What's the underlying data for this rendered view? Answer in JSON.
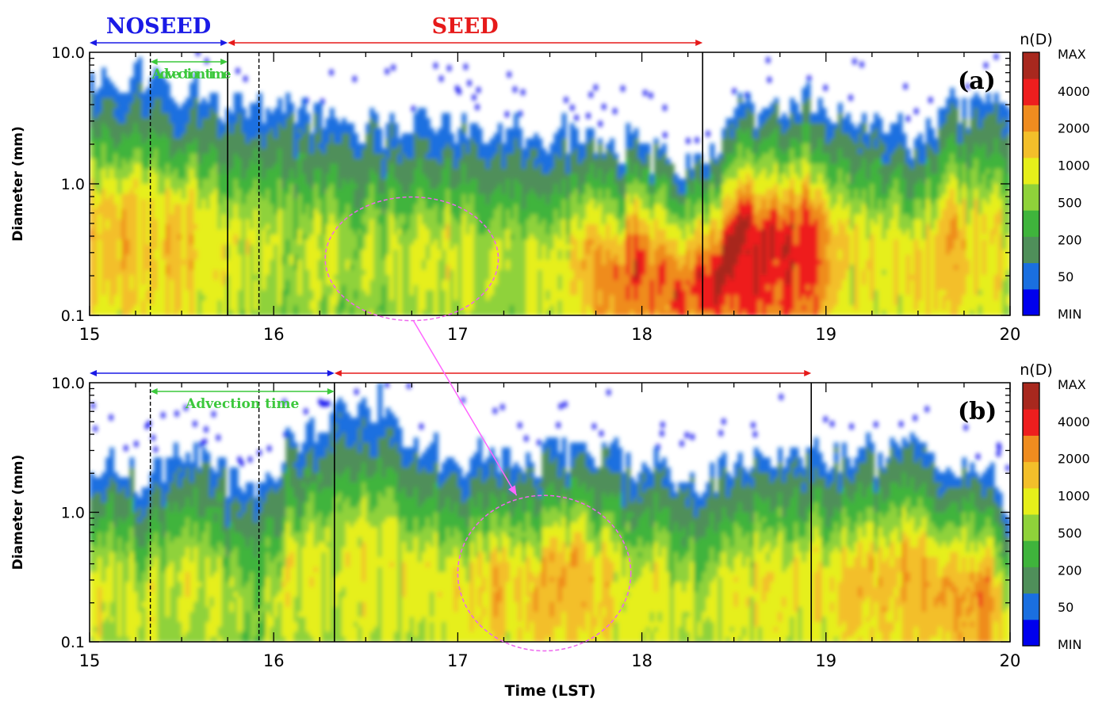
{
  "chart_data": [
    {
      "type": "heatmap",
      "panel_label": "(a)",
      "xlim": [
        15,
        20
      ],
      "ylim": [
        0.1,
        10.0
      ],
      "y_scale": "log",
      "ylabel": "Diameter (mm)",
      "xlabel": "",
      "x_ticks": [
        "15",
        "16",
        "17",
        "18",
        "19",
        "20"
      ],
      "y_ticks": [
        {
          "value": 0.1,
          "label": "0.1"
        },
        {
          "value": 1.0,
          "label": "1.0"
        },
        {
          "value": 10.0,
          "label": "10.0"
        }
      ],
      "colorbar_title": "n(D)",
      "colorbar_labels": [
        "MAX",
        "4000",
        "2000",
        "1000",
        "500",
        "200",
        "50",
        "MIN"
      ],
      "periods": [
        {
          "label": "NOSEED",
          "start": 15.0,
          "end": 15.75,
          "color": "#1a1ae6"
        },
        {
          "label": "SEED",
          "start": 15.75,
          "end": 18.33,
          "color": "#e61a1a"
        }
      ],
      "advection": {
        "label": "Advection time",
        "start": 15.33,
        "end": 15.75
      },
      "solid_lines": [
        15.75,
        18.33
      ],
      "dashed_lines": [
        15.33,
        15.92
      ],
      "ellipse": {
        "cx": 16.75,
        "cy_log": -0.57,
        "rx": 0.47,
        "ry_log": 0.47
      }
    },
    {
      "type": "heatmap",
      "panel_label": "(b)",
      "xlim": [
        15,
        20
      ],
      "ylim": [
        0.1,
        10.0
      ],
      "y_scale": "log",
      "ylabel": "Diameter (mm)",
      "xlabel": "Time (LST)",
      "x_ticks": [
        "15",
        "16",
        "17",
        "18",
        "19",
        "20"
      ],
      "y_ticks": [
        {
          "value": 0.1,
          "label": "0.1"
        },
        {
          "value": 1.0,
          "label": "1.0"
        },
        {
          "value": 10.0,
          "label": "10.0"
        }
      ],
      "colorbar_title": "n(D)",
      "colorbar_labels": [
        "MAX",
        "4000",
        "2000",
        "1000",
        "500",
        "200",
        "50",
        "MIN"
      ],
      "periods": [
        {
          "label": "",
          "start": 15.0,
          "end": 16.33,
          "color": "#1a1ae6"
        },
        {
          "label": "",
          "start": 16.33,
          "end": 18.92,
          "color": "#e61a1a"
        }
      ],
      "advection": {
        "label": "Advection time",
        "start": 15.33,
        "end": 16.33
      },
      "solid_lines": [
        16.33,
        18.92
      ],
      "dashed_lines": [
        15.33,
        15.92
      ],
      "ellipse": {
        "cx": 17.47,
        "cy_log": -0.47,
        "rx": 0.47,
        "ry_log": 0.6
      }
    }
  ],
  "colors": {
    "ramp": [
      "#0000ee",
      "#1a6fe0",
      "#4f8f5a",
      "#3fb43c",
      "#8fd23a",
      "#e6ef1a",
      "#f3bf2a",
      "#ef8c1f",
      "#ee1e1e",
      "#a8281e"
    ],
    "ellipse": "#ee66ee",
    "connector": "#ff66ff",
    "advection_text": "#3cc83c"
  }
}
